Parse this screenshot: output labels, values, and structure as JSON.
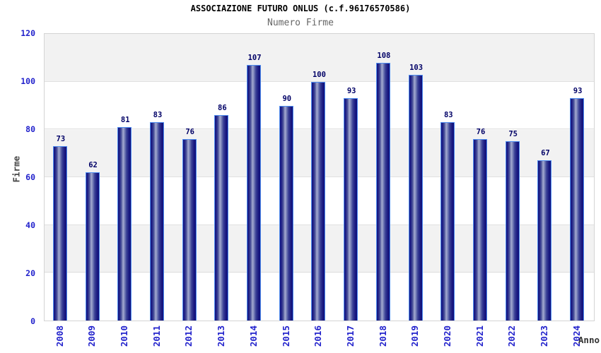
{
  "chart_data": {
    "type": "bar",
    "title": "ASSOCIAZIONE FUTURO ONLUS (c.f.96176570586)",
    "subtitle": "Numero Firme",
    "xlabel": "Anno",
    "ylabel": "Firme",
    "categories": [
      "2008",
      "2009",
      "2010",
      "2011",
      "2012",
      "2013",
      "2014",
      "2015",
      "2016",
      "2017",
      "2018",
      "2019",
      "2020",
      "2021",
      "2022",
      "2023",
      "2024"
    ],
    "values": [
      73,
      62,
      81,
      83,
      76,
      86,
      107,
      90,
      100,
      93,
      108,
      103,
      83,
      76,
      75,
      67,
      93
    ],
    "ylim": [
      0,
      120
    ],
    "yticks": [
      0,
      20,
      40,
      60,
      80,
      100,
      120
    ],
    "grid": true,
    "legend": false,
    "band_color": "#f2f2f2",
    "bar_dark_color": "#14147e",
    "bar_light_color": "#a4aad0",
    "bar_border_color": "#4f8df0",
    "value_label_color": "#000066",
    "tick_label_color": "#2222cc",
    "title_color": "#000000",
    "subtitle_color": "#666666"
  }
}
